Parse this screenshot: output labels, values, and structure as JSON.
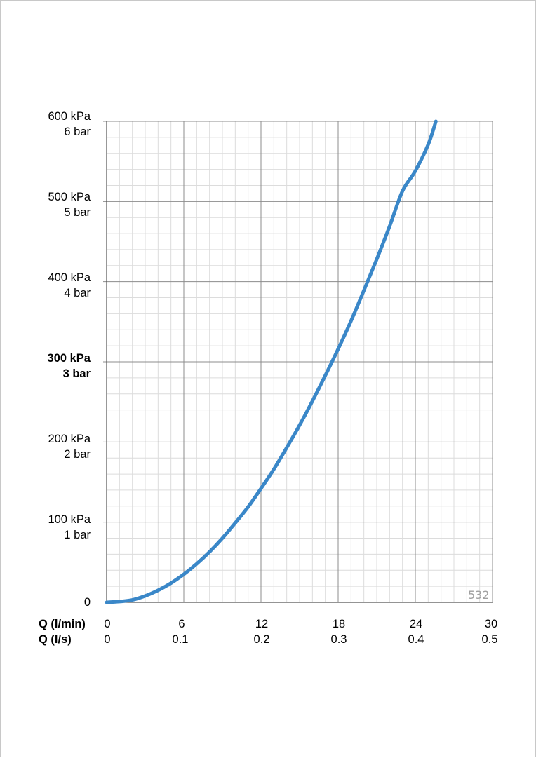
{
  "chart_data": {
    "type": "line",
    "chart_id": "532",
    "x_axis_title_primary": "Q (l/min)",
    "x_axis_title_secondary": "Q (l/s)",
    "x_ticks_primary": [
      "0",
      "6",
      "12",
      "18",
      "24",
      "30"
    ],
    "x_ticks_secondary": [
      "0",
      "0.1",
      "0.2",
      "0.3",
      "0.4",
      "0.5"
    ],
    "y_ticks": [
      {
        "kpa": "0",
        "bar": ""
      },
      {
        "kpa": "100 kPa",
        "bar": "1 bar"
      },
      {
        "kpa": "200 kPa",
        "bar": "2 bar"
      },
      {
        "kpa": "300 kPa",
        "bar": "3 bar",
        "bold": true
      },
      {
        "kpa": "400 kPa",
        "bar": "4 bar"
      },
      {
        "kpa": "500 kPa",
        "bar": "5 bar"
      },
      {
        "kpa": "600 kPa",
        "bar": "6 bar"
      }
    ],
    "xlim": [
      0,
      30
    ],
    "ylim": [
      0,
      600
    ],
    "grid": true,
    "line_color": "#3a87c8",
    "series": [
      {
        "x": [
          0,
          1,
          2,
          3,
          4,
          5,
          6,
          7,
          8,
          9,
          10,
          11,
          12,
          13,
          14,
          15,
          16,
          17,
          18,
          19,
          20,
          21,
          22,
          23,
          24,
          25,
          25.6
        ],
        "y": [
          0,
          1,
          3,
          8,
          15,
          24,
          35,
          48,
          63,
          80,
          99,
          119,
          142,
          166,
          193,
          221,
          251,
          283,
          316,
          351,
          389,
          428,
          469,
          513,
          538,
          571,
          600
        ]
      }
    ]
  }
}
